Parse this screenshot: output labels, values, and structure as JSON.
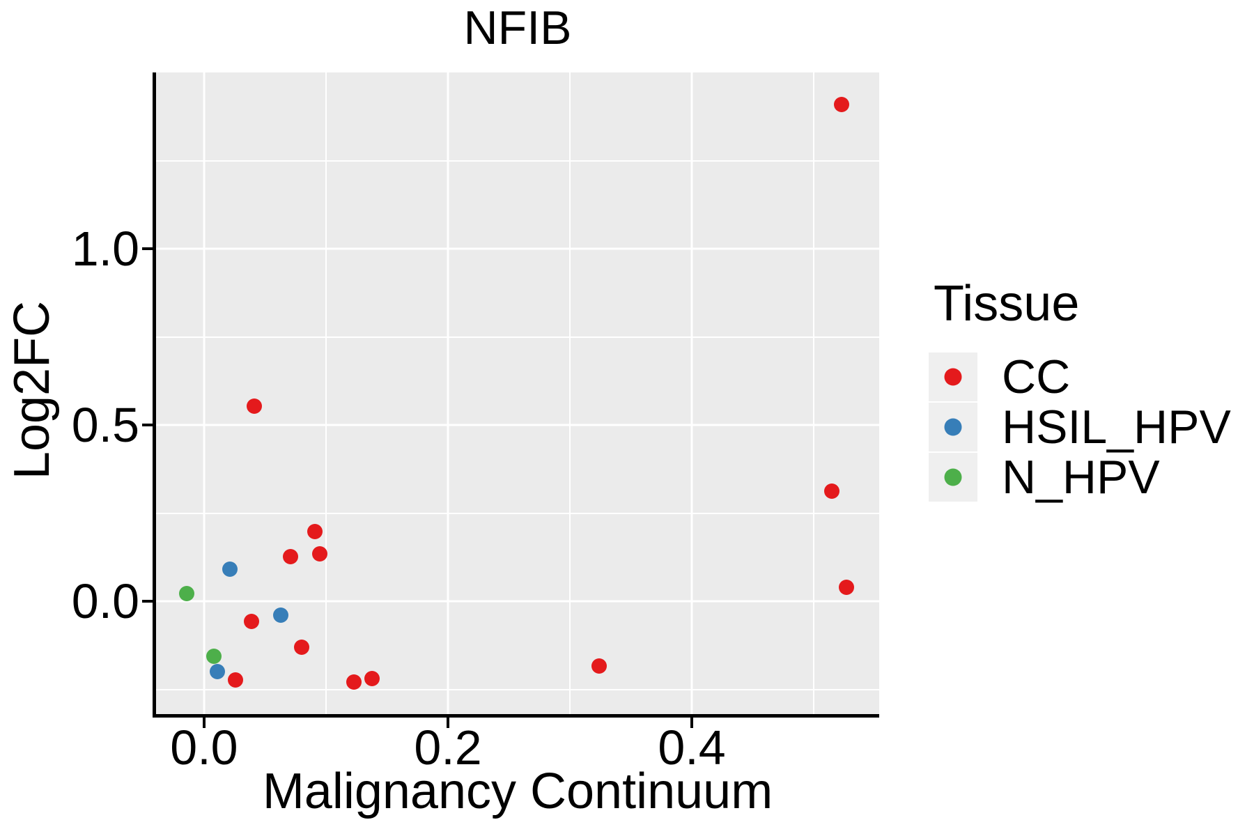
{
  "title": "NFIB",
  "axes": {
    "x": {
      "label": "Malignancy Continuum"
    },
    "y": {
      "label": "Log2FC"
    }
  },
  "legend": {
    "title": "Tissue",
    "items": [
      {
        "label": "CC",
        "color": "#E41A1C"
      },
      {
        "label": "HSIL_HPV",
        "color": "#377EB8"
      },
      {
        "label": "N_HPV",
        "color": "#4DAF4A"
      }
    ]
  },
  "colors": {
    "panel_background": "#EBEBEB",
    "gridline": "#FFFFFF",
    "axis_line": "#000000",
    "legend_key_background": "#EFEFEF",
    "text": "#000000",
    "cc_red": "#E41A1C",
    "hsil_hpv_blue": "#377EB8",
    "n_hpv_green": "#4DAF4A"
  },
  "chart_data": {
    "type": "scatter",
    "title": "NFIB",
    "xlabel": "Malignancy Continuum",
    "ylabel": "Log2FC",
    "xlim": [
      -0.0394,
      0.5537
    ],
    "ylim": [
      -0.32,
      1.5
    ],
    "grid": "white major+minor gridlines on grey panel",
    "legend_position": "right",
    "x_ticks": [
      {
        "value": 0.0,
        "label": "0.0"
      },
      {
        "value": 0.2,
        "label": "0.2"
      },
      {
        "value": 0.4,
        "label": "0.4"
      }
    ],
    "y_ticks": [
      {
        "value": 0.0,
        "label": "0.0"
      },
      {
        "value": 0.5,
        "label": "0.5"
      },
      {
        "value": 1.0,
        "label": "1.0"
      }
    ],
    "x_minor_gridlines": [
      0.1,
      0.3,
      0.5
    ],
    "y_minor_gridlines": [
      -0.25,
      0.25,
      0.75,
      1.25
    ],
    "series": [
      {
        "name": "CC",
        "color": "#E41A1C",
        "points": [
          [
            0.523,
            1.41
          ],
          [
            0.041,
            0.553
          ],
          [
            0.091,
            0.198
          ],
          [
            0.095,
            0.134
          ],
          [
            0.071,
            0.126
          ],
          [
            0.039,
            -0.057
          ],
          [
            0.026,
            -0.223
          ],
          [
            0.08,
            -0.13
          ],
          [
            0.123,
            -0.229
          ],
          [
            0.138,
            -0.219
          ],
          [
            0.324,
            -0.184
          ],
          [
            0.515,
            0.312
          ],
          [
            0.527,
            0.04
          ]
        ]
      },
      {
        "name": "HSIL_HPV",
        "color": "#377EB8",
        "points": [
          [
            0.021,
            0.091
          ],
          [
            0.063,
            -0.04
          ],
          [
            0.011,
            -0.2
          ]
        ]
      },
      {
        "name": "N_HPV",
        "color": "#4DAF4A",
        "points": [
          [
            -0.014,
            0.022
          ],
          [
            0.008,
            -0.155
          ]
        ]
      }
    ]
  }
}
